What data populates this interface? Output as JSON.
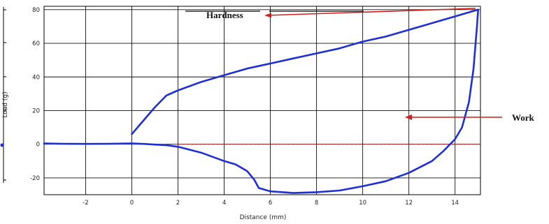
{
  "chart_data": {
    "type": "line",
    "xlabel": "Distance (mm)",
    "ylabel": "Load (g)",
    "xlim": [
      -3.8,
      15.1
    ],
    "ylim": [
      -30,
      82
    ],
    "xticks": [
      -2,
      0,
      2,
      4,
      6,
      8,
      10,
      12,
      14
    ],
    "yticks": [
      -20,
      0,
      20,
      40,
      60,
      80
    ],
    "grid": true,
    "series": [
      {
        "color": "#1f2fd6",
        "points": [
          [
            -3.8,
            0.5
          ],
          [
            -3,
            0.3
          ],
          [
            -2,
            0.2
          ],
          [
            -1,
            0.3
          ],
          [
            0,
            0.5
          ],
          [
            0.5,
            0.2
          ],
          [
            1,
            -0.2
          ],
          [
            1.5,
            -0.6
          ],
          [
            2,
            -1.5
          ],
          [
            3,
            -5
          ],
          [
            4,
            -10
          ],
          [
            4.5,
            -12
          ],
          [
            5,
            -16
          ],
          [
            5.3,
            -21
          ],
          [
            5.5,
            -26
          ],
          [
            6,
            -28
          ],
          [
            7,
            -29
          ],
          [
            8,
            -28.5
          ],
          [
            9,
            -27.5
          ],
          [
            10,
            -25
          ],
          [
            11,
            -22
          ],
          [
            12,
            -17
          ],
          [
            13,
            -10
          ],
          [
            13.5,
            -4
          ],
          [
            14,
            3
          ],
          [
            14.3,
            10
          ],
          [
            14.6,
            25
          ],
          [
            14.8,
            45
          ],
          [
            14.95,
            70
          ],
          [
            15,
            80
          ],
          [
            14,
            76
          ],
          [
            13,
            72
          ],
          [
            12,
            68
          ],
          [
            11,
            64
          ],
          [
            10,
            61
          ],
          [
            9,
            57
          ],
          [
            8,
            54
          ],
          [
            7,
            51
          ],
          [
            6,
            48
          ],
          [
            5,
            45
          ],
          [
            4,
            41
          ],
          [
            3,
            37
          ],
          [
            2,
            32
          ],
          [
            1.5,
            29
          ],
          [
            1,
            22
          ],
          [
            0.5,
            14
          ],
          [
            0,
            6
          ]
        ]
      }
    ],
    "reference_line": {
      "y": 0,
      "x_from": 2,
      "x_to": 15,
      "color": "#cc1f1f",
      "style": "dashed"
    },
    "annotations": [
      {
        "text": "Hardness",
        "color": "#cc1f1f"
      },
      {
        "text": "Work",
        "color": "#cc1f1f"
      }
    ]
  }
}
